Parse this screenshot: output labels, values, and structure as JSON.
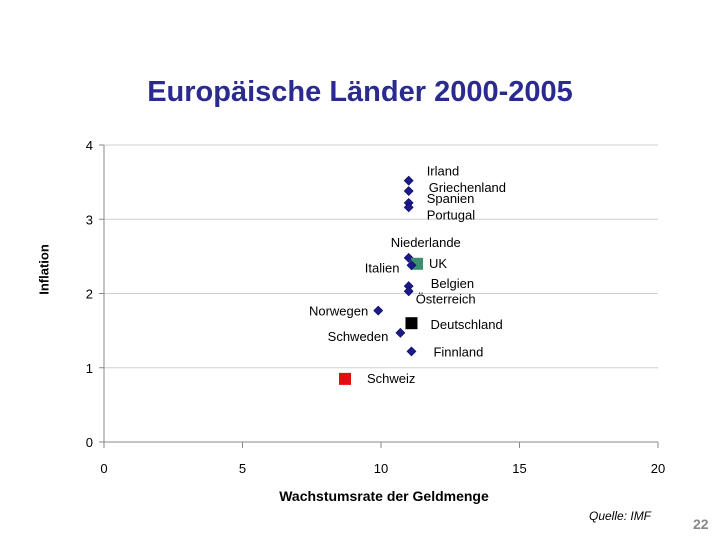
{
  "slide": {
    "source": "Quelle: IMF",
    "page_number": "22"
  },
  "chart_data": {
    "type": "scatter",
    "title": "Europäische Länder 2000-2005",
    "xlabel": "Wachstumsrate der Geldmenge",
    "ylabel": "Inflation",
    "xlim": [
      0,
      20
    ],
    "ylim": [
      0,
      4
    ],
    "xticks": [
      0,
      5,
      10,
      15,
      20
    ],
    "yticks": [
      0,
      1,
      2,
      3,
      4
    ],
    "grid": "horizontal",
    "points": [
      {
        "label": "Irland",
        "x": 11.0,
        "y": 3.52,
        "marker": "diamond",
        "color": "#1a1a8c"
      },
      {
        "label": "Griechenland",
        "x": 11.0,
        "y": 3.38,
        "marker": "diamond",
        "color": "#1a1a8c"
      },
      {
        "label": "Spanien",
        "x": 11.0,
        "y": 3.22,
        "marker": "diamond",
        "color": "#1a1a8c"
      },
      {
        "label": "Portugal",
        "x": 11.0,
        "y": 3.16,
        "marker": "diamond",
        "color": "#1a1a8c"
      },
      {
        "label": "Niederlande",
        "x": 11.0,
        "y": 2.48,
        "marker": "diamond",
        "color": "#1a1a8c"
      },
      {
        "label": "UK",
        "x": 11.3,
        "y": 2.4,
        "marker": "square",
        "color": "#3a8f6e"
      },
      {
        "label": "Italien",
        "x": 11.1,
        "y": 2.38,
        "marker": "diamond",
        "color": "#1a1a8c"
      },
      {
        "label": "Belgien",
        "x": 11.0,
        "y": 2.1,
        "marker": "diamond",
        "color": "#1a1a8c"
      },
      {
        "label": "Österreich",
        "x": 11.0,
        "y": 2.03,
        "marker": "diamond",
        "color": "#1a1a8c"
      },
      {
        "label": "Norwegen",
        "x": 9.9,
        "y": 1.77,
        "marker": "diamond",
        "color": "#1a1a8c"
      },
      {
        "label": "Deutschland",
        "x": 11.1,
        "y": 1.6,
        "marker": "square",
        "color": "#000000"
      },
      {
        "label": "Schweden",
        "x": 10.7,
        "y": 1.47,
        "marker": "diamond",
        "color": "#1a1a8c"
      },
      {
        "label": "Finnland",
        "x": 11.1,
        "y": 1.22,
        "marker": "diamond",
        "color": "#1a1a8c"
      },
      {
        "label": "Schweiz",
        "x": 8.7,
        "y": 0.85,
        "marker": "square",
        "color": "#e01010"
      }
    ]
  }
}
